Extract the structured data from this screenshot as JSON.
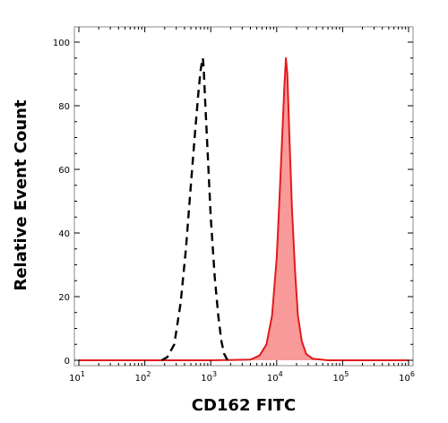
{
  "chart_data": {
    "type": "area",
    "xlabel": "CD162 FITC",
    "ylabel": "Relative Event Count",
    "xscale": "log",
    "xlim": [
      10,
      1000000
    ],
    "ylim": [
      0,
      100
    ],
    "x_ticks": [
      {
        "value": 10,
        "base": "10",
        "exp": "1"
      },
      {
        "value": 100,
        "base": "10",
        "exp": "2"
      },
      {
        "value": 1000,
        "base": "10",
        "exp": "3"
      },
      {
        "value": 10000,
        "base": "10",
        "exp": "4"
      },
      {
        "value": 100000,
        "base": "10",
        "exp": "5"
      },
      {
        "value": 1000000,
        "base": "10",
        "exp": "6"
      }
    ],
    "y_ticks": [
      "0",
      "20",
      "40",
      "60",
      "80",
      "100"
    ],
    "grid": false,
    "series": [
      {
        "style": "dashed",
        "color": "#000000",
        "fill": "none",
        "x": [
          180,
          220,
          280,
          350,
          420,
          500,
          580,
          650,
          700,
          740,
          760,
          780,
          820,
          900,
          1000,
          1150,
          1300,
          1450,
          1600,
          1800
        ],
        "y": [
          0,
          1,
          5,
          18,
          35,
          55,
          72,
          84,
          91,
          94,
          95,
          92,
          82,
          65,
          45,
          26,
          14,
          6,
          2,
          0
        ]
      },
      {
        "style": "solid",
        "color": "#e31a1c",
        "fill": "#f99a9a",
        "x": [
          10,
          1000,
          4000,
          5500,
          7000,
          8500,
          10000,
          11000,
          12000,
          13000,
          13800,
          14500,
          15500,
          17000,
          19000,
          21000,
          24000,
          28000,
          35000,
          60000,
          1000000
        ],
        "y": [
          0,
          0,
          0.2,
          1.5,
          5,
          14,
          32,
          50,
          68,
          85,
          95,
          90,
          72,
          48,
          28,
          14,
          6,
          2,
          0.5,
          0,
          0
        ]
      }
    ]
  }
}
